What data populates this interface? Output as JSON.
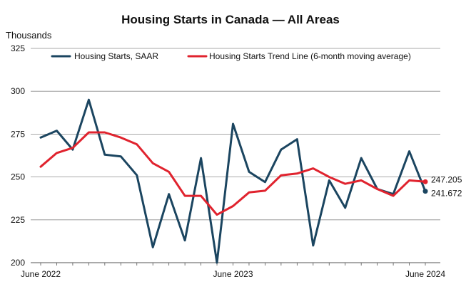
{
  "chart_data": {
    "type": "line",
    "title": "Housing Starts in Canada — All Areas",
    "ylabel": "Thousands",
    "xlabel": "",
    "ylim": [
      200,
      325
    ],
    "yticks": [
      200,
      225,
      250,
      275,
      300,
      325
    ],
    "grid": true,
    "legend_position": "top",
    "x": [
      "2022-06",
      "2022-07",
      "2022-08",
      "2022-09",
      "2022-10",
      "2022-11",
      "2022-12",
      "2023-01",
      "2023-02",
      "2023-03",
      "2023-04",
      "2023-05",
      "2023-06",
      "2023-07",
      "2023-08",
      "2023-09",
      "2023-10",
      "2023-11",
      "2023-12",
      "2024-01",
      "2024-02",
      "2024-03",
      "2024-04",
      "2024-05",
      "2024-06"
    ],
    "x_tick_labels": [
      {
        "x": "2022-06",
        "label": "June 2022"
      },
      {
        "x": "2023-06",
        "label": "June 2023"
      },
      {
        "x": "2024-06",
        "label": "June 2024"
      }
    ],
    "series": [
      {
        "name": "Housing Starts, SAAR",
        "color": "#1b4560",
        "values": [
          273,
          277,
          266,
          295,
          263,
          262,
          251,
          209,
          240,
          213,
          261,
          200,
          281,
          253,
          247,
          266,
          272,
          210,
          248,
          232,
          261,
          243,
          240,
          265,
          241.672
        ],
        "end_label": "241.672"
      },
      {
        "name": "Housing Starts Trend Line (6-month moving average)",
        "color": "#e0232e",
        "values": [
          256,
          264,
          267,
          276,
          276,
          273,
          269,
          258,
          253,
          239,
          239,
          228,
          233,
          241,
          242,
          251,
          252,
          255,
          250,
          246,
          248,
          243,
          239,
          248,
          247.205
        ],
        "end_label": "247.205"
      }
    ]
  }
}
